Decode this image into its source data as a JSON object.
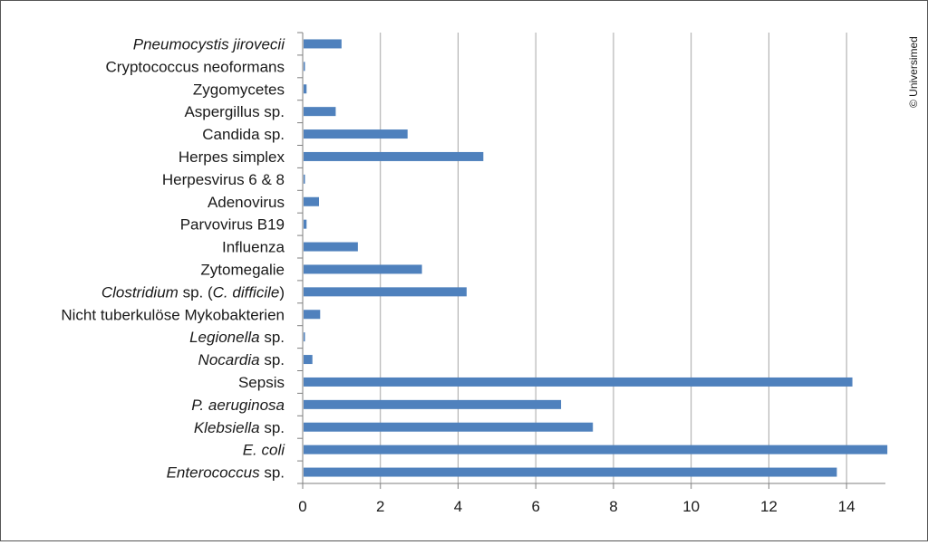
{
  "copyright": "© Universimed",
  "colors": {
    "bar": "#4f81bd",
    "grid": "#a6a6a6",
    "axis": "#7f7f7f"
  },
  "chart_data": {
    "type": "bar",
    "orientation": "horizontal",
    "categories": [
      "Pneumocystis jirovecii",
      "Cryptococcus neoformans",
      "Zygomycetes",
      "Aspergillus sp.",
      "Candida sp.",
      "Herpes simplex",
      "Herpesvirus 6 & 8",
      "Adenovirus",
      "Parvovirus B19",
      "Influenza",
      "Zytomegalie",
      "Clostridium sp. (C. difficile)",
      "Nicht tuberkulöse Mykobakterien",
      "Legionella sp.",
      "Nocardia sp.",
      "Sepsis",
      "P. aeruginosa",
      "Klebsiella sp.",
      "E. coli",
      "Enterococcus sp."
    ],
    "values": [
      1.0,
      0.05,
      0.1,
      0.85,
      2.7,
      4.65,
      0.05,
      0.42,
      0.1,
      1.42,
      3.07,
      4.22,
      0.45,
      0.05,
      0.25,
      14.15,
      6.65,
      7.47,
      15.05,
      13.75
    ],
    "xlim": [
      0,
      15
    ],
    "xticks": [
      "0",
      "2",
      "4",
      "6",
      "8",
      "10",
      "12",
      "14"
    ],
    "title": "",
    "xlabel": "",
    "ylabel": "",
    "grid": "vertical",
    "legend": "none"
  }
}
